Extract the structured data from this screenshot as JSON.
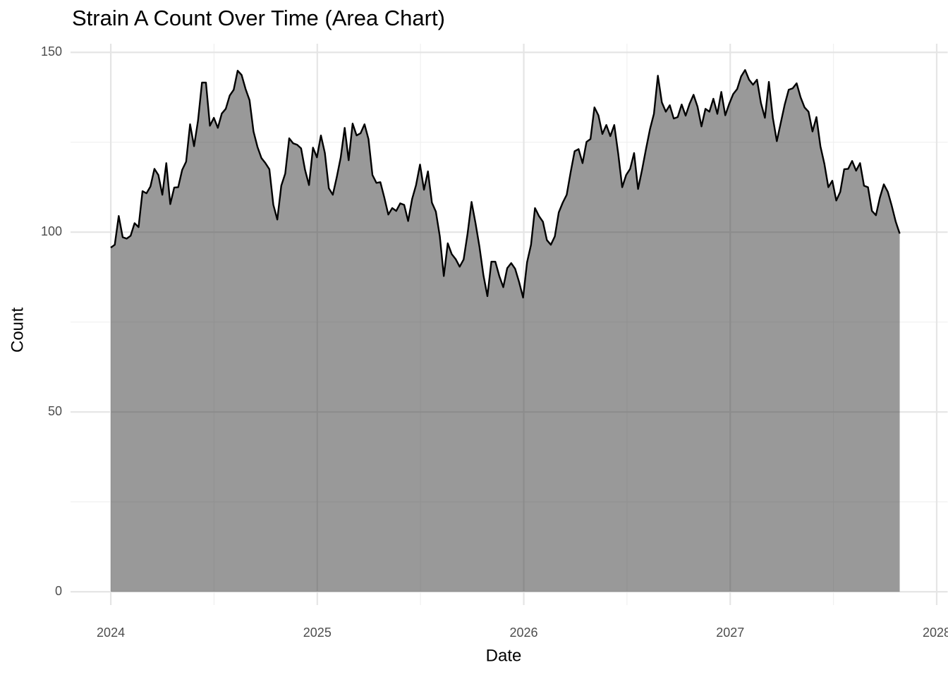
{
  "chart_data": {
    "type": "area",
    "title": "Strain A Count Over Time (Area Chart)",
    "x_label": "Date",
    "y_label": "Count",
    "xlim": [
      2023.805,
      2028.053
    ],
    "ylim": [
      -3.7,
      152.4
    ],
    "xticks": [
      2024,
      2025,
      2026,
      2027,
      2028
    ],
    "xminorticks": [
      2024.5,
      2025.5,
      2026.5,
      2027.5
    ],
    "yticks": [
      0,
      50,
      100,
      150
    ],
    "yminorticks": [
      25,
      75,
      125
    ],
    "grid": true,
    "line_color": "#000000",
    "fill_color": "#333333",
    "x": [
      2024,
      2024.0192,
      2024.0384,
      2024.0576,
      2024.0768,
      2024.096,
      2024.1152,
      2024.1344,
      2024.1536,
      2024.1728,
      2024.192,
      2024.2112,
      2024.2304,
      2024.2496,
      2024.2688,
      2024.288,
      2024.3072,
      2024.3264,
      2024.3456,
      2024.3648,
      2024.384,
      2024.4032,
      2024.4224,
      2024.4416,
      2024.4608,
      2024.48,
      2024.4992,
      2024.5184,
      2024.5376,
      2024.5568,
      2024.576,
      2024.5952,
      2024.6144,
      2024.6336,
      2024.6528,
      2024.672,
      2024.6912,
      2024.7104,
      2024.7296,
      2024.7488,
      2024.768,
      2024.7872,
      2024.8064,
      2024.8256,
      2024.8448,
      2024.864,
      2024.8832,
      2024.9024,
      2024.9216,
      2024.9408,
      2024.96,
      2024.9792,
      2024.9984,
      2025.0176,
      2025.0368,
      2025.056,
      2025.0752,
      2025.0944,
      2025.1136,
      2025.1328,
      2025.152,
      2025.1712,
      2025.1904,
      2025.2096,
      2025.2288,
      2025.248,
      2025.2672,
      2025.2864,
      2025.3056,
      2025.3248,
      2025.344,
      2025.3632,
      2025.3824,
      2025.4016,
      2025.4208,
      2025.44,
      2025.4592,
      2025.4784,
      2025.4976,
      2025.5168,
      2025.536,
      2025.5552,
      2025.5744,
      2025.5936,
      2025.6128,
      2025.632,
      2025.6512,
      2025.6704,
      2025.6896,
      2025.7088,
      2025.728,
      2025.7472,
      2025.7664,
      2025.7856,
      2025.8048,
      2025.824,
      2025.8432,
      2025.8624,
      2025.8816,
      2025.9008,
      2025.92,
      2025.9392,
      2025.9584,
      2025.9776,
      2025.9968,
      2026.016,
      2026.0352,
      2026.0544,
      2026.0736,
      2026.0928,
      2026.112,
      2026.1312,
      2026.1504,
      2026.1696,
      2026.1888,
      2026.208,
      2026.2272,
      2026.2464,
      2026.2656,
      2026.2848,
      2026.304,
      2026.3232,
      2026.3424,
      2026.3616,
      2026.3808,
      2026.4,
      2026.4192,
      2026.4384,
      2026.4576,
      2026.4768,
      2026.496,
      2026.5152,
      2026.5344,
      2026.5536,
      2026.5728,
      2026.592,
      2026.6112,
      2026.6304,
      2026.6496,
      2026.6688,
      2026.688,
      2026.7072,
      2026.7264,
      2026.7456,
      2026.7648,
      2026.784,
      2026.8032,
      2026.8224,
      2026.8416,
      2026.8608,
      2026.88,
      2026.8992,
      2026.9184,
      2026.9376,
      2026.9568,
      2026.976,
      2026.9952,
      2027.0144,
      2027.0336,
      2027.0528,
      2027.072,
      2027.0912,
      2027.1104,
      2027.1296,
      2027.1488,
      2027.168,
      2027.1872,
      2027.2064,
      2027.2256,
      2027.2448,
      2027.264,
      2027.2832,
      2027.3024,
      2027.3216,
      2027.3408,
      2027.36,
      2027.3792,
      2027.3984,
      2027.4176,
      2027.4368,
      2027.456,
      2027.4752,
      2027.4944,
      2027.5136,
      2027.5328,
      2027.552,
      2027.5712,
      2027.5904,
      2027.6096,
      2027.6288,
      2027.648,
      2027.6672,
      2027.6864,
      2027.7056,
      2027.7248,
      2027.744,
      2027.7632,
      2027.7824,
      2027.8016,
      2027.8208
    ],
    "values": [
      95.7,
      96.5,
      104.5,
      98.6,
      98.2,
      99,
      102.5,
      101.4,
      111.4,
      110.8,
      112.7,
      117.6,
      115.9,
      110.4,
      119.2,
      107.8,
      112.4,
      112.5,
      117.3,
      119.6,
      130,
      123.9,
      131,
      141.6,
      141.6,
      129.6,
      131.8,
      129,
      133,
      134.3,
      138,
      139.6,
      144.9,
      143.7,
      139.8,
      136.7,
      128,
      123.7,
      120.6,
      119.2,
      117.5,
      107.6,
      103.5,
      112.9,
      116.3,
      126.1,
      124.7,
      124.3,
      123.3,
      117.3,
      113.1,
      123.5,
      120.8,
      126.9,
      122,
      112.2,
      110.4,
      115.3,
      120.8,
      129,
      120,
      130.2,
      126.9,
      127.5,
      130,
      125.9,
      115.9,
      113.7,
      113.9,
      109.6,
      104.9,
      106.7,
      105.9,
      108,
      107.6,
      103.1,
      109.2,
      113.1,
      118.8,
      111.8,
      116.9,
      108.2,
      105.7,
      98.8,
      87.8,
      96.9,
      93.9,
      92.5,
      90.4,
      92.4,
      99.6,
      108.4,
      102.5,
      95.9,
      88,
      82.2,
      91.8,
      91.8,
      87.8,
      84.7,
      90,
      91.4,
      89.8,
      86.1,
      81.8,
      91.6,
      96.5,
      106.7,
      104.5,
      102.9,
      97.8,
      96.5,
      98.8,
      105.5,
      108.2,
      110.4,
      116.7,
      122.5,
      123.1,
      119.2,
      125.1,
      125.9,
      134.7,
      132.5,
      127.3,
      129.8,
      126.7,
      129.8,
      121.8,
      112.5,
      115.9,
      117.6,
      122,
      112,
      117.3,
      123.1,
      128.6,
      132.9,
      143.5,
      136.1,
      133.5,
      135.3,
      131.6,
      132,
      135.5,
      132.4,
      135.7,
      138.2,
      134.9,
      129.4,
      134.3,
      133.5,
      137.1,
      132.9,
      139,
      132.5,
      135.7,
      138.4,
      139.8,
      143.3,
      145.1,
      142.4,
      141,
      142.4,
      135.9,
      131.8,
      141.8,
      131.8,
      125.3,
      130.4,
      135.5,
      139.6,
      140,
      141.4,
      137.5,
      134.7,
      133.5,
      128,
      132,
      123.9,
      119,
      112.5,
      114.3,
      108.8,
      111.2,
      117.5,
      117.6,
      119.8,
      117.1,
      119.2,
      112.9,
      112.5,
      105.9,
      104.7,
      109.6,
      113.3,
      111.2,
      107.3,
      102.9,
      99.6
    ]
  }
}
